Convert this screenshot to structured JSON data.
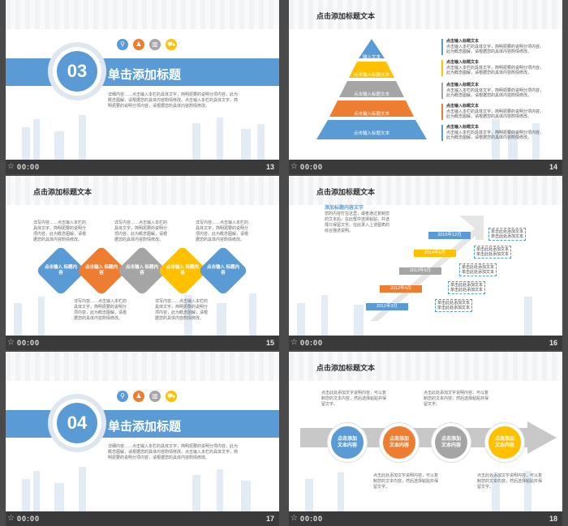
{
  "time_label": "00:00",
  "slides": {
    "s13": {
      "number": "13",
      "section_no": "03",
      "title": "单击添加标题",
      "body": "详细内容……点击输入本栏的具体文字，简明扼要的说明分项内容，此为概念图解，请根据您的具体内容酌情修改。点击输入本栏的具体文字，简明扼要的说明分项内容，请根据您的具体内容酌情修改。"
    },
    "s14": {
      "number": "14",
      "title": "点击添加标题文本",
      "pyramid": [
        "输入文本",
        "点击输入标题文本",
        "点击输入标题文本",
        "点击输入标题文本",
        "点击输入标题文本"
      ],
      "items": [
        {
          "head": "点击输入标题文本",
          "text": "点击输入本栏的具体文字，简明扼要的说明分项内容，此为概念图解，请根据您的具体内容酌情修改。"
        },
        {
          "head": "点击输入标题文本",
          "text": "点击输入本栏的具体文字，简明扼要的说明分项内容，此为概念图解，请根据您的具体内容酌情修改。"
        },
        {
          "head": "点击输入标题文本",
          "text": "点击输入本栏的具体文字，简明扼要的说明分项内容，此为概念图解，请根据您的具体内容酌情修改。"
        },
        {
          "head": "点击输入标题文本",
          "text": "点击输入本栏的具体文字，简明扼要的说明分项内容，此为概念图解，请根据您的具体内容酌情修改。"
        },
        {
          "head": "点击输入标题文本",
          "text": "点击输入本栏的具体文字，简明扼要的说明分项内容，此为概念图解，请根据您的具体内容酌情修改。"
        }
      ]
    },
    "s15": {
      "number": "15",
      "title": "点击添加标题文本",
      "diamond_label": "点击输入\n标题内容",
      "text_block": "详写内容……点击输入本栏的具体文字，简明扼要的说明分项内容，此为概念图解，请根据您的具体内容酌情修改。"
    },
    "s16": {
      "number": "16",
      "title": "点击添加标题文本",
      "subtitle": "添加标题内容文字",
      "desc": "您的内容打在这里，或者通过复制您的文本后，在此框中选择粘贴，并选择只保留文字。在此录入上述图表的综合描述说明。",
      "steps": [
        "2011年3月",
        "2012年4月",
        "2013年5月",
        "2014年6月",
        "2015年12月"
      ],
      "box_text": "单击此处添加文本\n单击此处添加文本"
    },
    "s17": {
      "number": "17",
      "section_no": "04",
      "title": "单击添加标题",
      "body": "详细内容……点击输入本栏的具体文字，简明扼要的说明分项内容，此为概念图解，请根据您的具体内容酌情修改。点击输入本栏的具体文字，简明扼要的说明分项内容，请根据您的具体内容酌情修改。"
    },
    "s18": {
      "number": "18",
      "title": "点击添加标题文本",
      "node_label": "点击添加\n文本内容",
      "callout": "点击此处添加文字说明内容，可以复制您的文本内容，然后选择粘贴并保留文字。"
    }
  },
  "colors": {
    "blue": "#5b9bd5",
    "orange": "#ed7d31",
    "gray": "#a5a5a5",
    "yellow": "#ffc000"
  }
}
